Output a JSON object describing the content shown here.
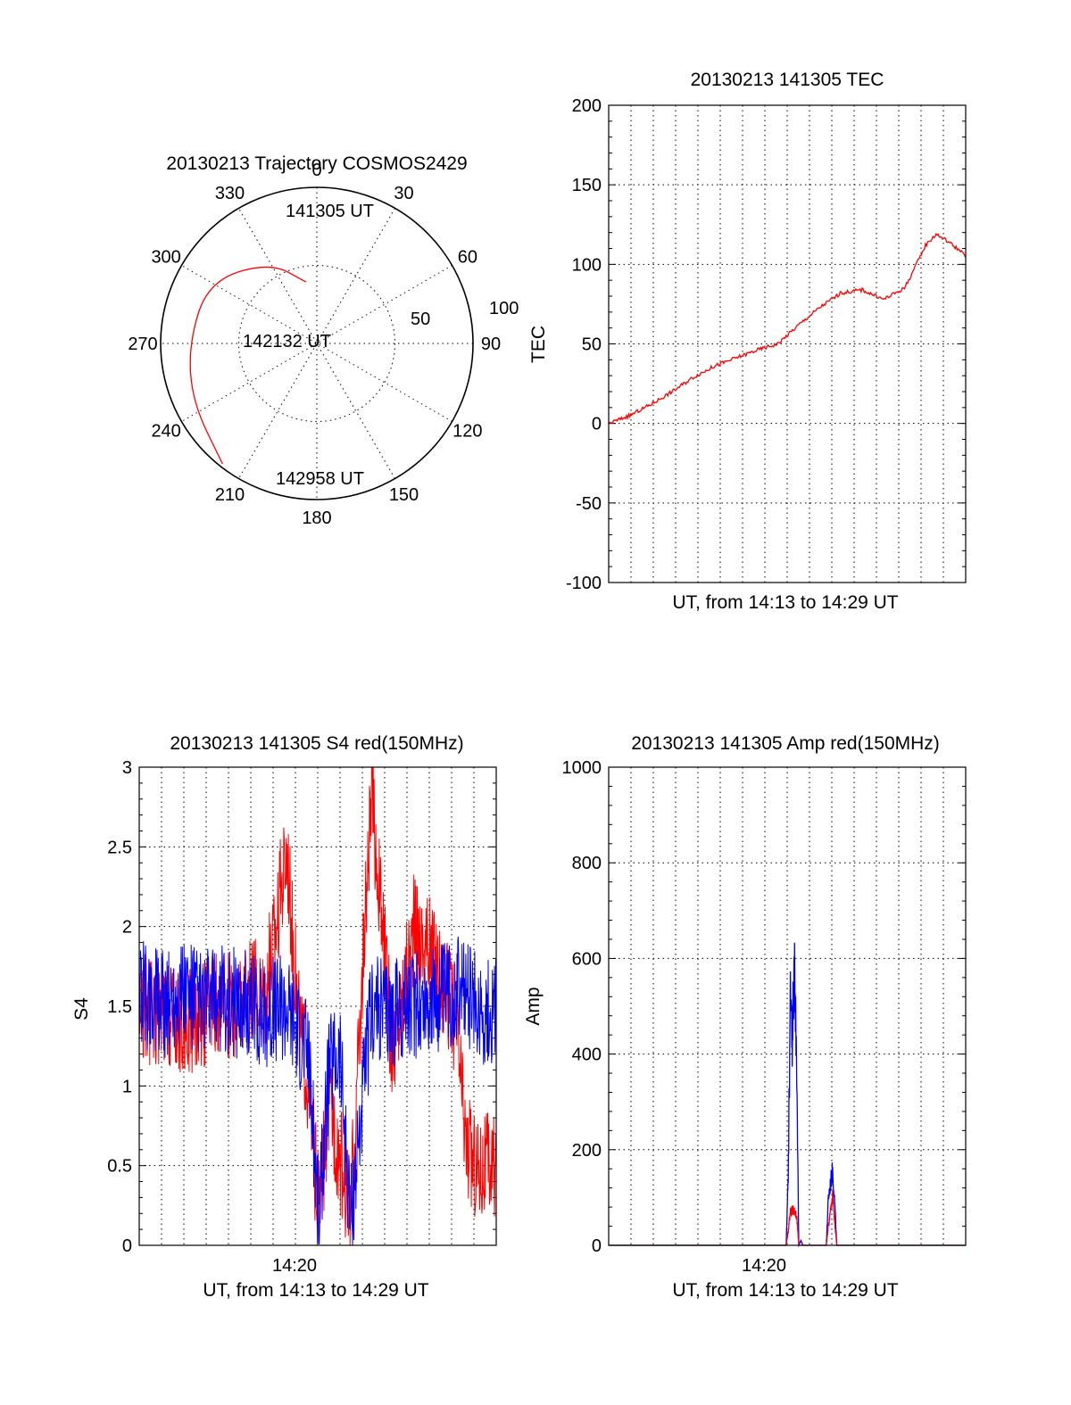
{
  "chart_data": [
    {
      "type": "polar",
      "title": "20130213 Trajectory COSMOS2429",
      "angle_ticks": [
        "0",
        "30",
        "60",
        "90",
        "120",
        "150",
        "180",
        "210",
        "240",
        "270",
        "300",
        "330"
      ],
      "radial_labels": [
        "50",
        "100"
      ],
      "trajectory_color": "#ff0000",
      "annotations": [
        "141305 UT",
        "142132 UT",
        "142958 UT"
      ],
      "trajectory": [
        {
          "az": 350,
          "r": 40
        },
        {
          "az": 330,
          "r": 60
        },
        {
          "az": 300,
          "r": 80
        },
        {
          "az": 270,
          "r": 82
        },
        {
          "az": 245,
          "r": 88
        },
        {
          "az": 218,
          "r": 98
        }
      ]
    },
    {
      "type": "line",
      "title": "20130213 141305 TEC",
      "xlabel": "UT, from 14:13 to 14:29 UT",
      "ylabel": "TEC",
      "ylim": [
        -100,
        200
      ],
      "yticks": [
        "200",
        "150",
        "100",
        "50",
        "0",
        "-50",
        "-100"
      ],
      "xlim": [
        0,
        16.9
      ],
      "series": [
        {
          "color": "#ff0000",
          "x": [
            0,
            1,
            2,
            3,
            4,
            5,
            6,
            7,
            8,
            9,
            10,
            11,
            12,
            13,
            14,
            14.5,
            15,
            15.5,
            16,
            16.5,
            16.9
          ],
          "values": [
            0,
            5,
            12,
            20,
            29,
            36,
            41,
            46,
            50,
            62,
            73,
            82,
            84,
            78,
            85,
            98,
            112,
            119,
            115,
            110,
            105
          ]
        }
      ]
    },
    {
      "type": "line",
      "title": "20130213 141305 S4 red(150MHz)",
      "xlabel": "UT, from 14:13 to 14:29 UT",
      "ylabel": "S4",
      "ylim": [
        0,
        3
      ],
      "yticks": [
        "3",
        "2.5",
        "2",
        "1.5",
        "1",
        "0.5",
        "0"
      ],
      "xtick": "14:20",
      "xlim": [
        0,
        16.9
      ],
      "series": [
        {
          "color": "#0000ff",
          "x": [
            0,
            1,
            2,
            3,
            4,
            5,
            6,
            7,
            7.5,
            8,
            8.5,
            9,
            9.5,
            10,
            11,
            12,
            13,
            14,
            15,
            16,
            16.9
          ],
          "values": [
            1.6,
            1.5,
            1.6,
            1.5,
            1.55,
            1.5,
            1.45,
            1.5,
            1.35,
            1.2,
            0.15,
            1.1,
            1.2,
            0.15,
            1.5,
            1.45,
            1.5,
            1.55,
            1.6,
            1.5,
            1.45
          ]
        },
        {
          "color": "#ff0000",
          "x": [
            0,
            2,
            4,
            6,
            7,
            7.5,
            8,
            8.5,
            9,
            10,
            11,
            12,
            13,
            14,
            15,
            15.5,
            16,
            16.9
          ],
          "values": [
            1.5,
            1.4,
            1.5,
            1.6,
            2.5,
            1.5,
            1.0,
            0.2,
            0.9,
            0.2,
            2.8,
            1.2,
            2.0,
            1.8,
            1.4,
            0.6,
            0.5,
            0.5
          ]
        }
      ]
    },
    {
      "type": "line",
      "title": "20130213 141305 Amp red(150MHz)",
      "xlabel": "UT, from 14:13 to 14:29 UT",
      "ylabel": "Amp",
      "ylim": [
        0,
        1000
      ],
      "yticks": [
        "1000",
        "800",
        "600",
        "400",
        "200",
        "0"
      ],
      "xtick": "14:20",
      "xlim": [
        0,
        16.9
      ],
      "series": [
        {
          "color": "#0000ff",
          "x": [
            0,
            8.4,
            8.5,
            8.6,
            8.7,
            8.8,
            8.9,
            9.0,
            9.1,
            9.2,
            10.3,
            10.4,
            10.5,
            10.6,
            10.7,
            10.8,
            16.9
          ],
          "values": [
            0,
            0,
            150,
            500,
            430,
            600,
            350,
            0,
            10,
            0,
            0,
            100,
            130,
            160,
            90,
            0,
            0
          ]
        },
        {
          "color": "#ff0000",
          "x": [
            0,
            8.4,
            8.5,
            8.6,
            8.8,
            8.9,
            9.0,
            9.1,
            10.3,
            10.4,
            10.6,
            10.8,
            16.9
          ],
          "values": [
            0,
            0,
            30,
            70,
            75,
            60,
            0,
            0,
            0,
            40,
            100,
            0,
            0
          ]
        }
      ]
    }
  ]
}
